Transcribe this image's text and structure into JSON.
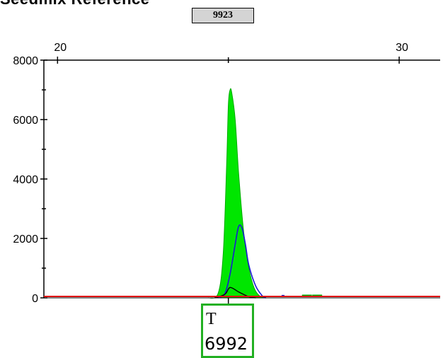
{
  "header": {
    "title_fragment": "Seedmix Reference",
    "marker_value": "9923"
  },
  "base_call": {
    "base": "T",
    "value": "6992"
  },
  "colors": {
    "peak_fill": "#00e600",
    "peak_edge": "#00aa00",
    "blue_trace": "#1a1ad6",
    "black_trace": "#000000",
    "baseline": "#e01010",
    "call_box_border": "#22b022"
  },
  "chart_data": {
    "type": "area",
    "title": "",
    "xlabel": "",
    "ylabel": "",
    "xlim": [
      19.6,
      31.2
    ],
    "ylim": [
      0,
      8000
    ],
    "x_ticks": [
      "20",
      "30"
    ],
    "y_ticks": [
      "0",
      "2000",
      "4000",
      "6000",
      "8000"
    ],
    "series": [
      {
        "name": "",
        "color": "#00e600",
        "x": [
          24.4,
          24.7,
          24.85,
          24.95,
          25.0,
          25.05,
          25.1,
          25.2,
          25.3,
          25.45,
          25.6,
          25.75,
          25.9,
          26.1
        ],
        "y": [
          0,
          150,
          1500,
          4500,
          6500,
          7000,
          6900,
          6000,
          4200,
          2200,
          1000,
          350,
          80,
          0
        ]
      },
      {
        "name": "",
        "color": "#1a1ad6",
        "x": [
          24.7,
          24.9,
          25.05,
          25.2,
          25.3,
          25.4,
          25.5,
          25.6,
          25.8,
          26.0,
          26.1
        ],
        "y": [
          0,
          150,
          800,
          1800,
          2400,
          2350,
          1800,
          1100,
          400,
          60,
          0
        ]
      },
      {
        "name": "",
        "color": "#000000",
        "x": [
          24.6,
          24.9,
          25.05,
          25.3,
          25.6,
          25.8
        ],
        "y": [
          0,
          120,
          350,
          200,
          40,
          0
        ]
      }
    ],
    "annotations": [
      {
        "type": "small_blips",
        "x": [
          26.6,
          27.3,
          27.6
        ],
        "y": [
          50,
          60,
          60
        ]
      }
    ]
  }
}
